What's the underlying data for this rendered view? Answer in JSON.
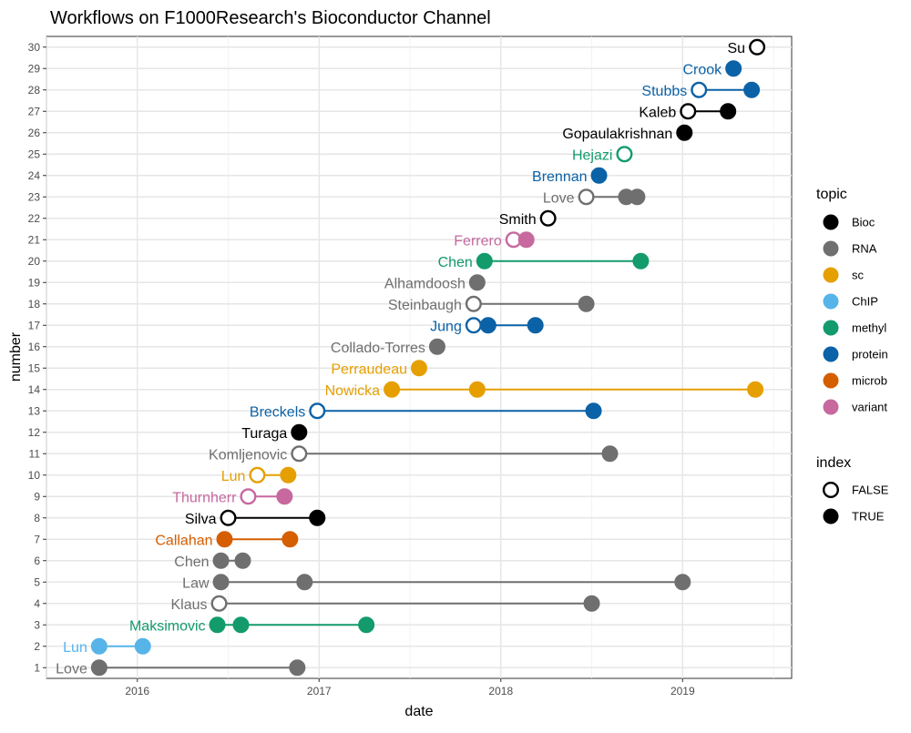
{
  "chart_data": {
    "type": "scatter",
    "title": "Workflows on F1000Research's Bioconductor Channel",
    "xlabel": "date",
    "ylabel": "number",
    "x_range": [
      2015.5,
      2019.6
    ],
    "x_ticks": [
      2016,
      2017,
      2018,
      2019
    ],
    "x_tick_labels": [
      "2016",
      "2017",
      "2018",
      "2019"
    ],
    "y_range": [
      0.5,
      30.5
    ],
    "y_ticks": [
      1,
      2,
      3,
      4,
      5,
      6,
      7,
      8,
      9,
      10,
      11,
      12,
      13,
      14,
      15,
      16,
      17,
      18,
      19,
      20,
      21,
      22,
      23,
      24,
      25,
      26,
      27,
      28,
      29,
      30
    ],
    "grid": true,
    "legend_position": "right",
    "topic_legend": {
      "title": "topic",
      "items": [
        {
          "name": "Bioc",
          "color": "#000000"
        },
        {
          "name": "RNA",
          "color": "#6f6f6f"
        },
        {
          "name": "sc",
          "color": "#e69f00"
        },
        {
          "name": "ChIP",
          "color": "#56b4e9"
        },
        {
          "name": "methyl",
          "color": "#139b6c"
        },
        {
          "name": "protein",
          "color": "#0b62a7"
        },
        {
          "name": "microb",
          "color": "#d55e00"
        },
        {
          "name": "variant",
          "color": "#c7689f"
        }
      ]
    },
    "index_legend": {
      "title": "index",
      "items": [
        {
          "name": "FALSE",
          "filled": false
        },
        {
          "name": "TRUE",
          "filled": true
        }
      ]
    },
    "workflows": [
      {
        "number": 1,
        "author": "Love",
        "topic": "RNA",
        "index": true,
        "dates": [
          2015.79,
          2016.88
        ]
      },
      {
        "number": 2,
        "author": "Lun",
        "topic": "ChIP",
        "index": true,
        "dates": [
          2015.79,
          2016.03
        ]
      },
      {
        "number": 3,
        "author": "Maksimovic",
        "topic": "methyl",
        "index": true,
        "dates": [
          2016.44,
          2016.57,
          2017.26
        ]
      },
      {
        "number": 4,
        "author": "Klaus",
        "topic": "RNA",
        "index": false,
        "dates": [
          2016.45,
          2018.5
        ]
      },
      {
        "number": 5,
        "author": "Law",
        "topic": "RNA",
        "index": true,
        "dates": [
          2016.46,
          2016.92,
          2019.0
        ]
      },
      {
        "number": 6,
        "author": "Chen",
        "topic": "RNA",
        "index": true,
        "dates": [
          2016.46,
          2016.58
        ]
      },
      {
        "number": 7,
        "author": "Callahan",
        "topic": "microb",
        "index": true,
        "dates": [
          2016.48,
          2016.84
        ]
      },
      {
        "number": 8,
        "author": "Silva",
        "topic": "Bioc",
        "index": false,
        "dates": [
          2016.5,
          2016.99
        ]
      },
      {
        "number": 9,
        "author": "Thurnherr",
        "topic": "variant",
        "index": false,
        "dates": [
          2016.61,
          2016.81
        ]
      },
      {
        "number": 10,
        "author": "Lun",
        "topic": "sc",
        "index": false,
        "dates": [
          2016.66,
          2016.83
        ]
      },
      {
        "number": 11,
        "author": "Komljenovic",
        "topic": "RNA",
        "index": false,
        "dates": [
          2016.89,
          2018.6
        ]
      },
      {
        "number": 12,
        "author": "Turaga",
        "topic": "Bioc",
        "index": true,
        "dates": [
          2016.89
        ]
      },
      {
        "number": 13,
        "author": "Breckels",
        "topic": "protein",
        "index": false,
        "dates": [
          2016.99,
          2018.51
        ]
      },
      {
        "number": 14,
        "author": "Nowicka",
        "topic": "sc",
        "index": true,
        "dates": [
          2017.4,
          2017.87,
          2019.4
        ]
      },
      {
        "number": 15,
        "author": "Perraudeau",
        "topic": "sc",
        "index": true,
        "dates": [
          2017.55
        ]
      },
      {
        "number": 16,
        "author": "Collado-Torres",
        "topic": "RNA",
        "index": true,
        "dates": [
          2017.65
        ]
      },
      {
        "number": 17,
        "author": "Jung",
        "topic": "protein",
        "index": false,
        "dates": [
          2017.85,
          2017.93,
          2018.19
        ]
      },
      {
        "number": 18,
        "author": "Steinbaugh",
        "topic": "RNA",
        "index": false,
        "dates": [
          2017.85,
          2018.47
        ]
      },
      {
        "number": 19,
        "author": "Alhamdoosh",
        "topic": "RNA",
        "index": true,
        "dates": [
          2017.87
        ]
      },
      {
        "number": 20,
        "author": "Chen",
        "topic": "methyl",
        "index": true,
        "dates": [
          2017.91,
          2018.77
        ]
      },
      {
        "number": 21,
        "author": "Ferrero",
        "topic": "variant",
        "index": false,
        "dates": [
          2018.07,
          2018.14
        ]
      },
      {
        "number": 22,
        "author": "Smith",
        "topic": "Bioc",
        "index": false,
        "dates": [
          2018.26
        ]
      },
      {
        "number": 23,
        "author": "Love",
        "topic": "RNA",
        "index": false,
        "dates": [
          2018.47,
          2018.69,
          2018.75
        ]
      },
      {
        "number": 24,
        "author": "Brennan",
        "topic": "protein",
        "index": true,
        "dates": [
          2018.54
        ]
      },
      {
        "number": 25,
        "author": "Hejazi",
        "topic": "methyl",
        "index": false,
        "dates": [
          2018.68
        ]
      },
      {
        "number": 26,
        "author": "Gopaulakrishnan",
        "topic": "Bioc",
        "index": true,
        "dates": [
          2019.01
        ]
      },
      {
        "number": 27,
        "author": "Kaleb",
        "topic": "Bioc",
        "index": false,
        "dates": [
          2019.03,
          2019.25
        ]
      },
      {
        "number": 28,
        "author": "Stubbs",
        "topic": "protein",
        "index": false,
        "dates": [
          2019.09,
          2019.38
        ]
      },
      {
        "number": 29,
        "author": "Crook",
        "topic": "protein",
        "index": true,
        "dates": [
          2019.28
        ]
      },
      {
        "number": 30,
        "author": "Su",
        "topic": "Bioc",
        "index": false,
        "dates": [
          2019.41
        ]
      }
    ]
  }
}
